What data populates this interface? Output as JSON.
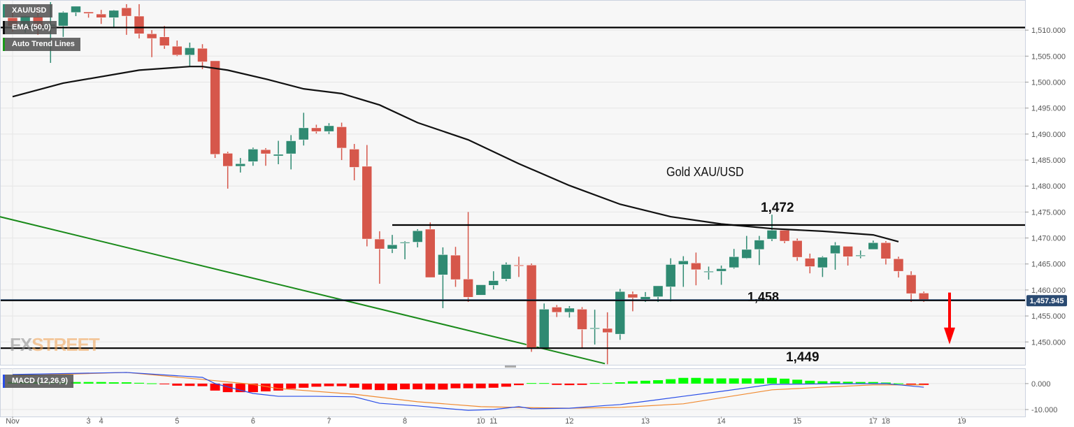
{
  "legends": {
    "symbol": "XAU/USD",
    "ema": "EMA (50,0)",
    "trend": "Auto Trend Lines",
    "macd": "MACD (12,26,9)"
  },
  "watermark": {
    "part1": "FX",
    "part2": "STREET"
  },
  "colors": {
    "up": "#2f8a72",
    "down": "#d6574b",
    "ema": "#111111",
    "trend": "#1a8a1a",
    "macd": "#2a4ee8",
    "signal": "#f08a30",
    "hist_pos": "#00ff00",
    "hist_neg": "#ff0000",
    "arrow": "#ff0000",
    "price_tag": "#2a4a72",
    "grid": "#e6e6e6",
    "background": "#f7f7f7"
  },
  "chart_data": {
    "type": "candlestick",
    "title": "Gold XAU/USD",
    "ylim": [
      1445.6,
      1515.8
    ],
    "yticks": [
      "1,450.000",
      "1,455.000",
      "1,460.000",
      "1,465.000",
      "1,470.000",
      "1,475.000",
      "1,480.000",
      "1,485.000",
      "1,490.000",
      "1,495.000",
      "1,500.000",
      "1,505.000",
      "1,510.000"
    ],
    "ytick_values": [
      1450,
      1455,
      1460,
      1465,
      1470,
      1475,
      1480,
      1485,
      1490,
      1495,
      1500,
      1505,
      1510
    ],
    "xticks": [
      {
        "label": "Nov",
        "t": "11-01 00:00"
      },
      {
        "label": "3",
        "t": "11-03 20:00"
      },
      {
        "label": "4",
        "t": "11-04 00:00"
      },
      {
        "label": "5",
        "t": "11-05 00:00"
      },
      {
        "label": "6",
        "t": "11-06 00:00"
      },
      {
        "label": "7",
        "t": "11-07 00:00"
      },
      {
        "label": "8",
        "t": "11-08 00:00"
      },
      {
        "label": "10",
        "t": "11-10 20:00"
      },
      {
        "label": "11",
        "t": "11-11 00:00"
      },
      {
        "label": "12",
        "t": "11-12 00:00"
      },
      {
        "label": "13",
        "t": "11-13 00:00"
      },
      {
        "label": "14",
        "t": "11-14 00:00"
      },
      {
        "label": "15",
        "t": "11-15 00:00"
      },
      {
        "label": "17",
        "t": "11-17 20:00"
      },
      {
        "label": "18",
        "t": "11-18 00:00"
      },
      {
        "label": "19",
        "t": "11-19 00:00"
      }
    ],
    "candles_fields": [
      "t",
      "open",
      "high",
      "low",
      "close"
    ],
    "candles": [
      [
        "11-01 00:00",
        1512.4,
        1513.4,
        1509.7,
        1510.8
      ],
      [
        "11-01 04:00",
        1510.8,
        1512.8,
        1509.5,
        1512.7
      ],
      [
        "11-01 08:00",
        1512.6,
        1514.7,
        1509.1,
        1510.8
      ],
      [
        "11-01 12:00",
        1510.8,
        1515.4,
        1503.7,
        1511.1
      ],
      [
        "11-01 16:00",
        1510.8,
        1513.6,
        1508.7,
        1513.4
      ],
      [
        "11-01 20:00",
        1513.4,
        1514.6,
        1512.7,
        1514.6
      ],
      [
        "11-03 20:00",
        1513.5,
        1513.5,
        1512.4,
        1513.2
      ],
      [
        "11-04 00:00",
        1513.1,
        1513.9,
        1511.2,
        1512.4
      ],
      [
        "11-04 04:00",
        1512.4,
        1513.9,
        1510.5,
        1513.8
      ],
      [
        "11-04 08:00",
        1514.3,
        1515.0,
        1509.1,
        1512.7
      ],
      [
        "11-04 12:00",
        1512.7,
        1515.0,
        1508.4,
        1509.3
      ],
      [
        "11-04 16:00",
        1509.3,
        1510.0,
        1504.8,
        1508.4
      ],
      [
        "11-04 20:00",
        1508.7,
        1510.8,
        1506.4,
        1507.0
      ],
      [
        "11-05 00:00",
        1506.9,
        1508.0,
        1505.0,
        1505.2
      ],
      [
        "11-05 04:00",
        1505.2,
        1507.6,
        1503.0,
        1506.6
      ],
      [
        "11-05 08:00",
        1506.5,
        1507.3,
        1502.5,
        1503.9
      ],
      [
        "11-05 12:00",
        1504.1,
        1504.1,
        1485.4,
        1486.1
      ],
      [
        "11-05 16:00",
        1486.3,
        1486.6,
        1479.5,
        1483.8
      ],
      [
        "11-05 20:00",
        1483.8,
        1485.4,
        1482.6,
        1484.3
      ],
      [
        "11-06 00:00",
        1484.7,
        1487.4,
        1483.9,
        1487.1
      ],
      [
        "11-06 04:00",
        1487.0,
        1487.3,
        1483.9,
        1486.2
      ],
      [
        "11-06 08:00",
        1485.8,
        1488.7,
        1484.2,
        1486.1
      ],
      [
        "11-06 12:00",
        1486.2,
        1489.8,
        1483.2,
        1488.7
      ],
      [
        "11-06 16:00",
        1488.9,
        1494.1,
        1487.8,
        1491.2
      ],
      [
        "11-06 20:00",
        1491.2,
        1491.8,
        1490.1,
        1490.5
      ],
      [
        "11-07 00:00",
        1490.5,
        1492.1,
        1490.0,
        1491.6
      ],
      [
        "11-07 04:00",
        1491.4,
        1492.2,
        1485.0,
        1487.3
      ],
      [
        "11-07 08:00",
        1487.1,
        1488.1,
        1481.1,
        1483.6
      ],
      [
        "11-07 12:00",
        1483.8,
        1487.9,
        1468.4,
        1469.8
      ],
      [
        "11-07 16:00",
        1469.8,
        1471.3,
        1461.2,
        1467.9
      ],
      [
        "11-07 20:00",
        1467.9,
        1470.6,
        1467.1,
        1468.7
      ],
      [
        "11-08 00:00",
        1469.1,
        1469.4,
        1465.9,
        1469.2
      ],
      [
        "11-08 04:00",
        1469.2,
        1471.7,
        1468.2,
        1471.4
      ],
      [
        "11-08 08:00",
        1471.7,
        1473.0,
        1462.4,
        1462.4
      ],
      [
        "11-08 12:00",
        1462.9,
        1468.2,
        1456.5,
        1466.8
      ],
      [
        "11-08 16:00",
        1466.7,
        1468.3,
        1460.6,
        1462.0
      ],
      [
        "11-08 20:00",
        1462.1,
        1475.0,
        1457.7,
        1458.6
      ],
      [
        "11-10 20:00",
        1459.0,
        1461.0,
        1459.0,
        1461.0
      ],
      [
        "11-11 00:00",
        1460.9,
        1463.6,
        1460.1,
        1461.8
      ],
      [
        "11-11 04:00",
        1462.1,
        1465.3,
        1461.7,
        1464.9
      ],
      [
        "11-11 08:00",
        1464.8,
        1466.4,
        1462.5,
        1464.7
      ],
      [
        "11-11 12:00",
        1464.8,
        1465.1,
        1448.1,
        1448.9
      ],
      [
        "11-11 16:00",
        1448.9,
        1457.4,
        1448.9,
        1456.3
      ],
      [
        "11-11 20:00",
        1456.7,
        1457.1,
        1454.8,
        1455.7
      ],
      [
        "11-12 00:00",
        1455.7,
        1456.9,
        1454.7,
        1456.5
      ],
      [
        "11-12 04:00",
        1456.3,
        1456.7,
        1448.8,
        1452.4
      ],
      [
        "11-12 08:00",
        1452.6,
        1456.2,
        1449.5,
        1452.7
      ],
      [
        "11-12 12:00",
        1452.6,
        1455.7,
        1445.7,
        1451.8
      ],
      [
        "11-12 16:00",
        1451.5,
        1460.2,
        1450.4,
        1459.7
      ],
      [
        "11-12 20:00",
        1459.2,
        1459.7,
        1455.9,
        1458.5
      ],
      [
        "11-13 00:00",
        1458.2,
        1459.6,
        1457.7,
        1458.7
      ],
      [
        "11-13 04:00",
        1458.7,
        1460.8,
        1457.7,
        1460.8
      ],
      [
        "11-13 08:00",
        1460.6,
        1466.1,
        1457.8,
        1464.9
      ],
      [
        "11-13 12:00",
        1464.9,
        1466.5,
        1460.6,
        1465.6
      ],
      [
        "11-13 16:00",
        1465.2,
        1467.2,
        1460.9,
        1463.9
      ],
      [
        "11-13 20:00",
        1463.5,
        1464.5,
        1462.0,
        1463.6
      ],
      [
        "11-14 00:00",
        1463.6,
        1464.7,
        1461.0,
        1464.1
      ],
      [
        "11-14 04:00",
        1464.3,
        1467.9,
        1464.1,
        1466.4
      ],
      [
        "11-14 08:00",
        1466.1,
        1470.4,
        1466.0,
        1467.8
      ],
      [
        "11-14 12:00",
        1467.8,
        1470.4,
        1464.8,
        1469.6
      ],
      [
        "11-14 16:00",
        1469.8,
        1474.5,
        1469.4,
        1471.5
      ],
      [
        "11-14 20:00",
        1471.5,
        1471.5,
        1469.0,
        1469.4
      ],
      [
        "11-15 00:00",
        1469.5,
        1469.9,
        1465.6,
        1466.3
      ],
      [
        "11-15 04:00",
        1466.1,
        1467.0,
        1463.2,
        1464.5
      ],
      [
        "11-15 08:00",
        1464.3,
        1466.5,
        1462.5,
        1466.3
      ],
      [
        "11-15 12:00",
        1467.0,
        1469.2,
        1463.9,
        1468.6
      ],
      [
        "11-15 16:00",
        1468.4,
        1468.4,
        1464.7,
        1466.4
      ],
      [
        "11-15 20:00",
        1466.5,
        1467.6,
        1466.1,
        1466.7
      ],
      [
        "11-17 20:00",
        1467.8,
        1469.5,
        1467.8,
        1469.1
      ],
      [
        "11-18 00:00",
        1469.1,
        1469.4,
        1464.9,
        1466.0
      ],
      [
        "11-18 04:00",
        1466.0,
        1466.4,
        1462.4,
        1463.6
      ],
      [
        "11-18 08:00",
        1462.9,
        1463.6,
        1457.7,
        1459.3
      ],
      [
        "11-18 12:00",
        1459.4,
        1459.7,
        1457.7,
        1457.9
      ]
    ],
    "ema": {
      "name": "EMA (50,0)",
      "points": [
        [
          "11-01 00:00",
          1497.2
        ],
        [
          "11-01 16:00",
          1499.8
        ],
        [
          "11-04 12:00",
          1502.3
        ],
        [
          "11-05 04:00",
          1503.0
        ],
        [
          "11-05 08:00",
          1503.0
        ],
        [
          "11-05 16:00",
          1502.3
        ],
        [
          "11-06 04:00",
          1500.6
        ],
        [
          "11-06 16:00",
          1498.7
        ],
        [
          "11-07 04:00",
          1497.8
        ],
        [
          "11-07 16:00",
          1495.6
        ],
        [
          "11-08 04:00",
          1492.2
        ],
        [
          "11-08 20:00",
          1488.9
        ],
        [
          "11-11 08:00",
          1484.3
        ],
        [
          "11-12 00:00",
          1480.1
        ],
        [
          "11-12 16:00",
          1476.5
        ],
        [
          "11-13 08:00",
          1474.1
        ],
        [
          "11-14 00:00",
          1472.7
        ],
        [
          "11-14 16:00",
          1471.8
        ],
        [
          "11-15 08:00",
          1471.3
        ],
        [
          "11-17 20:00",
          1470.6
        ],
        [
          "11-18 04:00",
          1469.3
        ]
      ]
    },
    "trend_line": {
      "points": [
        [
          "11-01 00:00",
          1473.5
        ],
        [
          "11-12 08:00",
          1446.3
        ]
      ]
    },
    "levels": [
      {
        "value": 1510.5,
        "from": null
      },
      {
        "value": 1472.5,
        "from": "11-07 20:00"
      },
      {
        "value": 1458.0,
        "from": null
      },
      {
        "value": 1448.8,
        "from": null
      }
    ],
    "last_price": {
      "value": 1457.945,
      "label": "1,457.945"
    },
    "annotations": {
      "title": "Gold XAU/USD",
      "resistance": "1,472",
      "support1": "1,458",
      "support2": "1,449"
    },
    "arrow": {
      "direction": "down",
      "from_price": 1459.5,
      "to_price": 1449.8
    },
    "macd": {
      "ylim": [
        -12.7,
        5.9
      ],
      "yticks": [
        "0.000",
        "-10.000"
      ],
      "ytick_values": [
        0,
        -10
      ],
      "macd_line": [
        [
          "11-01 00:00",
          3.5
        ],
        [
          "11-04 08:00",
          4.3
        ],
        [
          "11-05 08:00",
          2.4
        ],
        [
          "11-05 12:00",
          0
        ],
        [
          "11-06 00:00",
          -3.8
        ],
        [
          "11-06 08:00",
          -4.9
        ],
        [
          "11-06 20:00",
          -4.9
        ],
        [
          "11-07 08:00",
          -5.1
        ],
        [
          "11-07 16:00",
          -7.6
        ],
        [
          "11-08 04:00",
          -8.6
        ],
        [
          "11-08 12:00",
          -9.5
        ],
        [
          "11-08 20:00",
          -10.3
        ],
        [
          "11-11 00:00",
          -10.0
        ],
        [
          "11-11 08:00",
          -8.9
        ],
        [
          "11-11 12:00",
          -9.7
        ],
        [
          "11-12 00:00",
          -9.5
        ],
        [
          "11-12 12:00",
          -8.4
        ],
        [
          "11-12 16:00",
          -8.1
        ],
        [
          "11-13 04:00",
          -6.2
        ],
        [
          "11-13 12:00",
          -4.9
        ],
        [
          "11-14 00:00",
          -3.0
        ],
        [
          "11-14 16:00",
          -0.3
        ],
        [
          "11-15 08:00",
          -0.1
        ],
        [
          "11-18 00:00",
          0
        ],
        [
          "11-18 12:00",
          -1.4
        ]
      ],
      "signal_line": [
        [
          "11-01 00:00",
          3.0
        ],
        [
          "11-04 08:00",
          4.3
        ],
        [
          "11-05 08:00",
          1.6
        ],
        [
          "11-06 00:00",
          -0.3
        ],
        [
          "11-06 08:00",
          -1.9
        ],
        [
          "11-07 08:00",
          -4.1
        ],
        [
          "11-08 04:00",
          -7.0
        ],
        [
          "11-10 20:00",
          -8.9
        ],
        [
          "11-11 08:00",
          -9.2
        ],
        [
          "11-12 00:00",
          -9.5
        ],
        [
          "11-12 16:00",
          -9.2
        ],
        [
          "11-13 12:00",
          -7.8
        ],
        [
          "11-14 16:00",
          -2.4
        ],
        [
          "11-15 08:00",
          -1.4
        ],
        [
          "11-17 20:00",
          -0.5
        ],
        [
          "11-18 12:00",
          -0.5
        ]
      ],
      "histogram": [
        0.6,
        0.6,
        0.6,
        0.6,
        0.6,
        0.6,
        0.6,
        0.6,
        0.5,
        0.5,
        0.3,
        0.1,
        -0.2,
        -0.8,
        -0.9,
        -1.0,
        -2.7,
        -3.3,
        -3.3,
        -3.3,
        -3.0,
        -2.7,
        -2.0,
        -1.6,
        -1.2,
        -1.0,
        -1.0,
        -1.6,
        -2.3,
        -2.5,
        -2.5,
        -2.2,
        -2.2,
        -2.3,
        -2.3,
        -1.8,
        -1.8,
        -1.8,
        -1.6,
        -1.2,
        -0.6,
        0.2,
        0.2,
        -0.5,
        -0.6,
        -0.5,
        0.2,
        0.2,
        0.5,
        0.9,
        1.1,
        1.3,
        1.7,
        2.2,
        2.2,
        2.0,
        2.0,
        2.0,
        2.0,
        2.0,
        2.2,
        1.9,
        1.5,
        1.1,
        0.9,
        0.8,
        0.7,
        0.6,
        0.6,
        0.4,
        0.1,
        -0.3,
        -0.5
      ]
    }
  }
}
